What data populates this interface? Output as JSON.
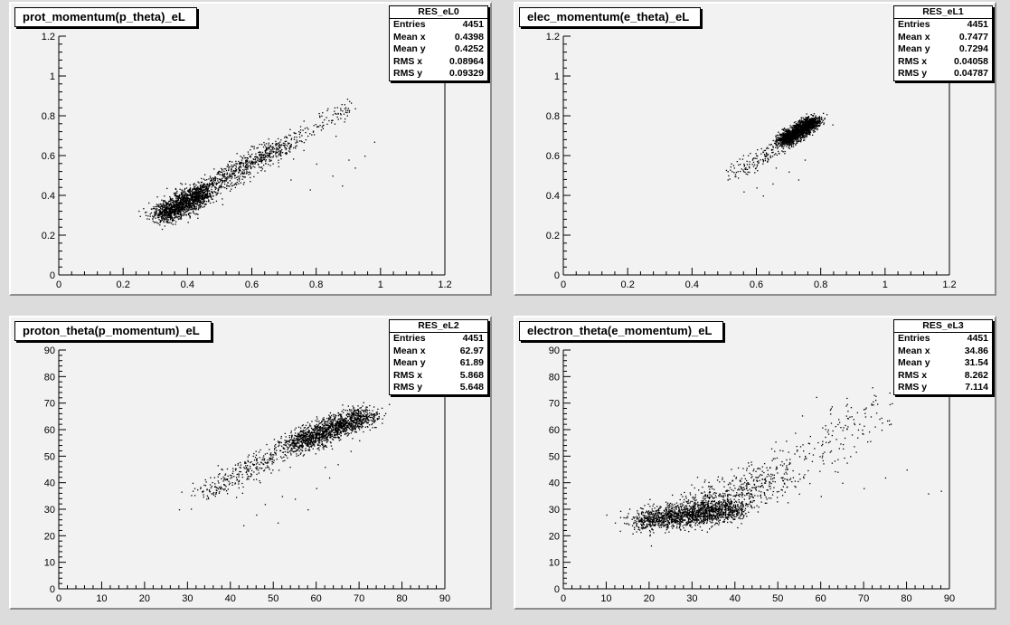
{
  "chart_data": [
    {
      "type": "scatter",
      "title": "prot_momentum(p_theta)_eL",
      "stats": {
        "name": "RES_eL0",
        "entries": "4451",
        "mean_x": "0.4398",
        "mean_y": "0.4252",
        "rms_x": "0.08964",
        "rms_y": "0.09329"
      },
      "xlim": [
        0,
        1.2
      ],
      "ylim": [
        0,
        1.2
      ],
      "xticks": [
        "0",
        "0.2",
        "0.4",
        "0.6",
        "0.8",
        "1",
        "1.2"
      ],
      "yticks": [
        "0",
        "0.2",
        "0.4",
        "0.6",
        "0.8",
        "1",
        "1.2"
      ],
      "clusters": [
        {
          "x0": 0.32,
          "y0": 0.3,
          "x1": 0.45,
          "y1": 0.42,
          "spread": 0.025,
          "n": 1300
        },
        {
          "x0": 0.42,
          "y0": 0.4,
          "x1": 0.7,
          "y1": 0.66,
          "spread": 0.025,
          "n": 700
        },
        {
          "x0": 0.68,
          "y0": 0.64,
          "x1": 0.9,
          "y1": 0.85,
          "spread": 0.02,
          "n": 120
        }
      ],
      "outliers": [
        [
          0.72,
          0.48
        ],
        [
          0.78,
          0.43
        ],
        [
          0.8,
          0.56
        ],
        [
          0.85,
          0.5
        ],
        [
          0.88,
          0.45
        ],
        [
          0.9,
          0.58
        ],
        [
          0.95,
          0.6
        ],
        [
          0.98,
          0.67
        ],
        [
          0.92,
          0.54
        ],
        [
          0.86,
          0.7
        ]
      ]
    },
    {
      "type": "scatter",
      "title": "elec_momentum(e_theta)_eL",
      "stats": {
        "name": "RES_eL1",
        "entries": "4451",
        "mean_x": "0.7477",
        "mean_y": "0.7294",
        "rms_x": "0.04058",
        "rms_y": "0.04787"
      },
      "xlim": [
        0,
        1.2
      ],
      "ylim": [
        0,
        1.2
      ],
      "xticks": [
        "0",
        "0.2",
        "0.4",
        "0.6",
        "0.8",
        "1",
        "1.2"
      ],
      "yticks": [
        "0",
        "0.2",
        "0.4",
        "0.6",
        "0.8",
        "1",
        "1.2"
      ],
      "clusters": [
        {
          "x0": 0.68,
          "y0": 0.67,
          "x1": 0.78,
          "y1": 0.78,
          "spread": 0.015,
          "n": 1700
        },
        {
          "x0": 0.52,
          "y0": 0.5,
          "x1": 0.7,
          "y1": 0.68,
          "spread": 0.02,
          "n": 160
        }
      ],
      "outliers": [
        [
          0.56,
          0.42
        ],
        [
          0.62,
          0.4
        ],
        [
          0.65,
          0.46
        ],
        [
          0.7,
          0.52
        ],
        [
          0.73,
          0.48
        ],
        [
          0.66,
          0.54
        ],
        [
          0.75,
          0.58
        ],
        [
          0.6,
          0.44
        ]
      ]
    },
    {
      "type": "scatter",
      "title": "proton_theta(p_momentum)_eL",
      "stats": {
        "name": "RES_eL2",
        "entries": "4451",
        "mean_x": "62.97",
        "mean_y": "61.89",
        "rms_x": "5.868",
        "rms_y": "5.648"
      },
      "xlim": [
        0,
        90
      ],
      "ylim": [
        0,
        90
      ],
      "xticks": [
        "0",
        "10",
        "20",
        "30",
        "40",
        "50",
        "60",
        "70",
        "80",
        "90"
      ],
      "yticks": [
        "0",
        "10",
        "20",
        "30",
        "40",
        "50",
        "60",
        "70",
        "80",
        "90"
      ],
      "clusters": [
        {
          "x0": 55,
          "y0": 55,
          "x1": 72,
          "y1": 66,
          "spread": 2.0,
          "n": 1400
        },
        {
          "x0": 34,
          "y0": 36,
          "x1": 56,
          "y1": 56,
          "spread": 2.0,
          "n": 350
        }
      ],
      "outliers": [
        [
          28,
          30
        ],
        [
          43,
          24
        ],
        [
          46,
          28
        ],
        [
          48,
          32
        ],
        [
          51,
          25
        ],
        [
          52,
          35
        ],
        [
          55,
          34
        ],
        [
          58,
          30
        ],
        [
          60,
          38
        ],
        [
          63,
          42
        ],
        [
          65,
          47
        ],
        [
          70,
          56
        ],
        [
          68,
          52
        ],
        [
          62,
          46
        ]
      ]
    },
    {
      "type": "scatter",
      "title": "electron_theta(e_momentum)_eL",
      "stats": {
        "name": "RES_eL3",
        "entries": "4451",
        "mean_x": "34.86",
        "mean_y": "31.54",
        "rms_x": "8.262",
        "rms_y": "7.114"
      },
      "xlim": [
        0,
        90
      ],
      "ylim": [
        0,
        90
      ],
      "xticks": [
        "0",
        "10",
        "20",
        "30",
        "40",
        "50",
        "60",
        "70",
        "80",
        "90"
      ],
      "yticks": [
        "0",
        "10",
        "20",
        "30",
        "40",
        "50",
        "60",
        "70",
        "80",
        "90"
      ],
      "clusters": [
        {
          "x0": 18,
          "y0": 26,
          "x1": 40,
          "y1": 30,
          "spread": 2.2,
          "n": 1500
        },
        {
          "x0": 30,
          "y0": 30,
          "x1": 50,
          "y1": 42,
          "spread": 3.5,
          "n": 450
        },
        {
          "x0": 48,
          "y0": 42,
          "x1": 75,
          "y1": 70,
          "spread": 4.0,
          "n": 180
        }
      ],
      "outliers": [
        [
          10,
          28
        ],
        [
          12,
          25
        ],
        [
          14,
          27
        ],
        [
          16,
          24
        ],
        [
          60,
          35
        ],
        [
          65,
          40
        ],
        [
          70,
          38
        ],
        [
          75,
          42
        ],
        [
          80,
          45
        ],
        [
          85,
          36
        ],
        [
          88,
          37
        ],
        [
          72,
          76
        ],
        [
          76,
          74
        ],
        [
          66,
          72
        ]
      ]
    }
  ]
}
